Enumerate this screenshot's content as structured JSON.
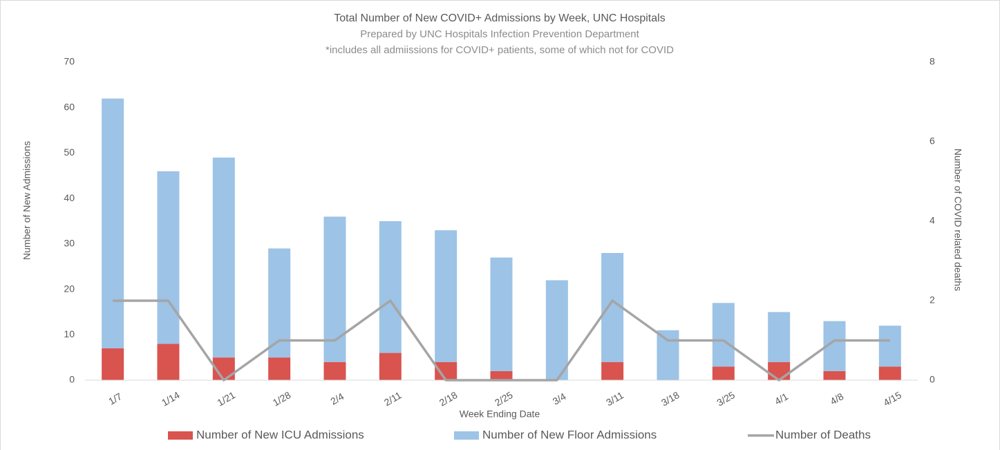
{
  "chart_data": {
    "type": "bar",
    "title": "Total Number of New COVID+ Admissions by Week, UNC Hospitals",
    "subtitle": "Prepared by UNC Hospitals Infection Prevention Department",
    "note": "*includes all admiissions for COVID+ patients, some of which not for COVID",
    "x_label": "Week Ending Date",
    "y_label": "Number of New Admissions",
    "y2_label": "Number of COVID related deaths",
    "categories": [
      "1/7",
      "1/14",
      "1/21",
      "1/28",
      "2/4",
      "2/11",
      "2/18",
      "2/25",
      "3/4",
      "3/11",
      "3/18",
      "3/25",
      "4/1",
      "4/8",
      "4/15"
    ],
    "stacked": true,
    "series": [
      {
        "name": "Number of New ICU Admissions",
        "type": "bar",
        "color": "#d9534f",
        "values": [
          7,
          8,
          5,
          5,
          4,
          6,
          4,
          2,
          0,
          4,
          0,
          3,
          4,
          2,
          3
        ]
      },
      {
        "name": "Number of New Floor Admissions",
        "type": "bar",
        "color": "#9dc3e6",
        "values": [
          55,
          38,
          44,
          24,
          32,
          29,
          29,
          25,
          22,
          24,
          11,
          14,
          11,
          11,
          9
        ]
      },
      {
        "name": "Number of Deaths",
        "type": "line",
        "axis": "y2",
        "color": "#a5a5a5",
        "values": [
          2,
          2,
          0,
          1,
          1,
          2,
          0,
          0,
          0,
          2,
          1,
          1,
          0,
          1,
          1
        ]
      }
    ],
    "ylim": [
      0,
      70
    ],
    "yticks": [
      0,
      10,
      20,
      30,
      40,
      50,
      60,
      70
    ],
    "y2lim": [
      0,
      8
    ],
    "y2ticks": [
      0,
      2,
      4,
      6,
      8
    ],
    "grid": false,
    "legend": "bottom"
  }
}
